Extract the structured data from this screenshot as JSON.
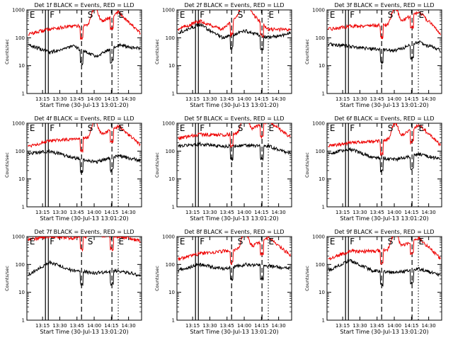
{
  "chart_data": {
    "type": "line",
    "y_scale": "log",
    "ylim": [
      1,
      1000
    ],
    "y_ticks": [
      "1",
      "10",
      "100",
      "1000"
    ],
    "ylabel": "Counts/sec",
    "xlabel": "Start Time (30-Jul-13 13:01:20)",
    "x_ticks": [
      "13:15",
      "13:30",
      "13:45",
      "14:00",
      "14:15",
      "14:30"
    ],
    "series": [
      {
        "name": "Events",
        "color": "#000000"
      },
      {
        "name": "LLD",
        "color": "#ee0000"
      }
    ],
    "marker_labels": [
      "E",
      "F",
      "S",
      "E"
    ],
    "line_times": {
      "solid": [
        "13:17:30",
        "13:20:00"
      ],
      "dashed": [
        "13:49:00",
        "14:15:30"
      ],
      "dotted": [
        "14:21:00"
      ]
    },
    "panels": [
      {
        "title": "Det 1f BLACK = Events, RED = LLD",
        "events": [
          60,
          30,
          50,
          22,
          55,
          40
        ],
        "lld": [
          130,
          210,
          260,
          290,
          850,
          130
        ]
      },
      {
        "title": "Det 2f BLACK = Events, RED = LLD",
        "events": [
          150,
          300,
          100,
          180,
          100,
          150
        ],
        "lld": [
          200,
          400,
          200,
          1200,
          200,
          200
        ]
      },
      {
        "title": "Det 3f BLACK = Events, RED = LLD",
        "events": [
          60,
          50,
          40,
          35,
          70,
          35
        ],
        "lld": [
          200,
          260,
          280,
          300,
          900,
          130
        ]
      },
      {
        "title": "Det 4f BLACK = Events, RED = LLD",
        "events": [
          80,
          100,
          60,
          40,
          70,
          45
        ],
        "lld": [
          150,
          230,
          280,
          300,
          800,
          150
        ]
      },
      {
        "title": "Det 5f BLACK = Events, RED = LLD",
        "events": [
          150,
          180,
          150,
          160,
          150,
          80
        ],
        "lld": [
          280,
          400,
          380,
          500,
          1200,
          300
        ]
      },
      {
        "title": "Det 6f BLACK = Events, RED = LLD",
        "events": [
          80,
          120,
          60,
          50,
          80,
          50
        ],
        "lld": [
          150,
          200,
          220,
          260,
          900,
          150
        ]
      },
      {
        "title": "Det 7f BLACK = Events, RED = LLD",
        "events": [
          40,
          120,
          60,
          50,
          60,
          40
        ],
        "lld": [
          800,
          1000,
          900,
          1100,
          1000,
          700
        ]
      },
      {
        "title": "Det 8f BLACK = Events, RED = LLD",
        "events": [
          60,
          100,
          70,
          100,
          90,
          70
        ],
        "lld": [
          150,
          250,
          300,
          350,
          900,
          200
        ]
      },
      {
        "title": "Det 9f BLACK = Events, RED = LLD",
        "events": [
          60,
          140,
          60,
          50,
          70,
          40
        ],
        "lld": [
          150,
          300,
          300,
          350,
          900,
          150
        ]
      }
    ]
  }
}
